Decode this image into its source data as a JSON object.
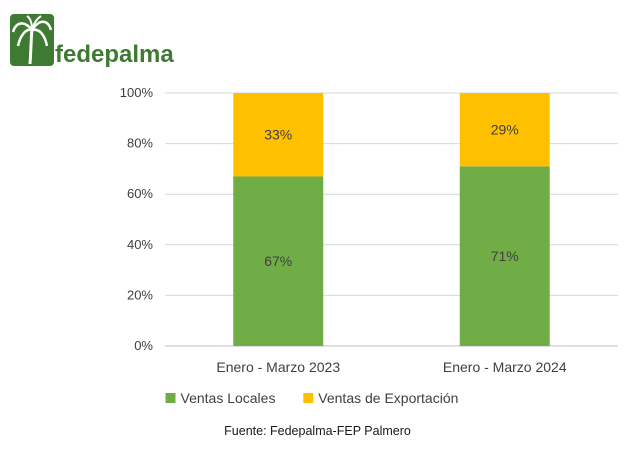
{
  "logo": {
    "text": "fedepalma",
    "color": "#3f7a32"
  },
  "chart_data": {
    "type": "bar",
    "stacked": true,
    "categories": [
      "Enero - Marzo 2023",
      "Enero - Marzo 2024"
    ],
    "series": [
      {
        "name": "Ventas Locales",
        "values": [
          67,
          71
        ],
        "labels": [
          "67%",
          "71%"
        ],
        "color": "#70ad47"
      },
      {
        "name": "Ventas de Exportación",
        "values": [
          33,
          29
        ],
        "labels": [
          "33%",
          "29%"
        ],
        "color": "#ffc000"
      }
    ],
    "ylim": [
      0,
      100
    ],
    "yticks": [
      "0%",
      "20%",
      "40%",
      "60%",
      "80%",
      "100%"
    ],
    "grid": true,
    "legend_position": "bottom"
  },
  "source": "Fuente: Fedepalma-FEP Palmero"
}
